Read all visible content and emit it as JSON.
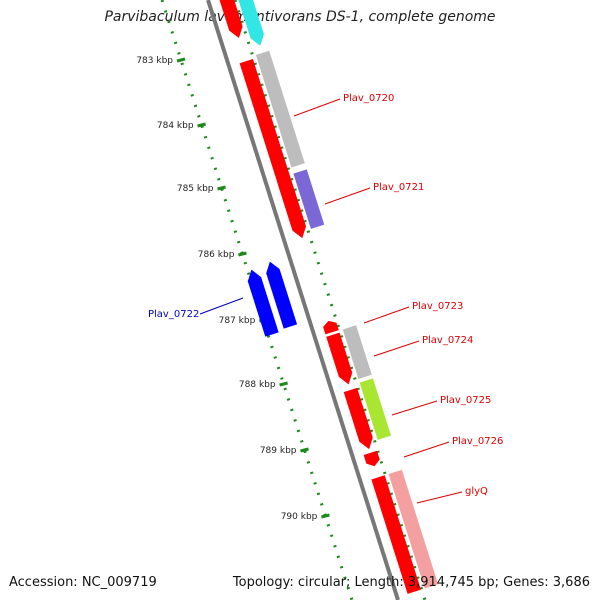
{
  "title": "Parvibaculum lavamentivorans DS-1, complete genome",
  "footer": {
    "accession": "Accession: NC_009719",
    "summary": "Topology: circular; Length: 3,914,745 bp; Genes: 3,686"
  },
  "axis": {
    "ticks": [
      "783 kbp",
      "784 kbp",
      "785 kbp",
      "786 kbp",
      "787 kbp",
      "788 kbp",
      "789 kbp",
      "790 kbp"
    ]
  },
  "genes": [
    {
      "label": "Plav_0720",
      "color": "#dd0000"
    },
    {
      "label": "Plav_0721",
      "color": "#dd0000"
    },
    {
      "label": "Plav_0722",
      "color": "#0000bb"
    },
    {
      "label": "Plav_0723",
      "color": "#dd0000"
    },
    {
      "label": "Plav_0724",
      "color": "#dd0000"
    },
    {
      "label": "Plav_0725",
      "color": "#dd0000"
    },
    {
      "label": "Plav_0726",
      "color": "#dd0000"
    },
    {
      "label": "glyQ",
      "color": "#dd0000"
    }
  ],
  "colors": {
    "cds_forward": "#ff0000",
    "cds_reverse": "#0000ff",
    "cog_grey": "#bdbdbd",
    "cog_cyan": "#33e6e6",
    "cog_purple": "#7b68d6",
    "cog_green": "#a8e632",
    "cog_pink": "#f4a0a0",
    "backbone": "#777777",
    "ruler": "#1a8a1a"
  }
}
